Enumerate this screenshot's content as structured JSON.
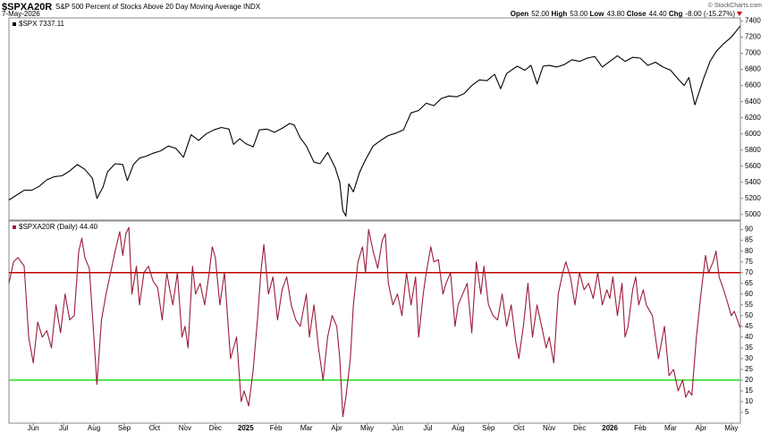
{
  "header": {
    "symbol": "$SPXA20R",
    "title": "S&P 500 Percent of Stocks Above 20 Day Moving Average INDX",
    "date": "7-May-2026",
    "brand": "© StockCharts.com",
    "quote": [
      {
        "label": "Open",
        "value": "52.00"
      },
      {
        "label": "High",
        "value": "53.00"
      },
      {
        "label": "Low",
        "value": "43.80"
      },
      {
        "label": "Close",
        "value": "44.40"
      },
      {
        "label": "Chg",
        "value": "-8.00 (-15.27%)"
      }
    ]
  },
  "chart_data": [
    {
      "type": "line",
      "xlim": [
        4.2,
        28.3
      ],
      "ylim": [
        4930,
        7440
      ],
      "yticks": [
        {
          "value": 5000,
          "label": "5000"
        },
        5200,
        5400,
        5600,
        5800,
        6000,
        6200,
        6400,
        6600,
        6800,
        7000,
        7200,
        7400
      ],
      "x": [
        4.2,
        4.45,
        4.7,
        4.95,
        5.2,
        5.45,
        5.7,
        5.95,
        6.2,
        6.45,
        6.7,
        6.95,
        7.1,
        7.3,
        7.45,
        7.7,
        7.95,
        8.1,
        8.3,
        8.5,
        8.7,
        8.95,
        9.2,
        9.45,
        9.7,
        9.95,
        10.2,
        10.45,
        10.7,
        10.95,
        11.2,
        11.45,
        11.6,
        11.8,
        12.0,
        12.25,
        12.45,
        12.7,
        12.95,
        13.2,
        13.45,
        13.6,
        13.8,
        14.0,
        14.25,
        14.45,
        14.7,
        14.95,
        15.1,
        15.2,
        15.3,
        15.4,
        15.55,
        15.75,
        15.95,
        16.2,
        16.45,
        16.7,
        16.95,
        17.2,
        17.45,
        17.7,
        17.95,
        18.2,
        18.45,
        18.7,
        18.95,
        19.2,
        19.45,
        19.7,
        19.95,
        20.2,
        20.4,
        20.6,
        20.95,
        21.2,
        21.4,
        21.6,
        21.8,
        22.0,
        22.25,
        22.5,
        22.75,
        23.0,
        23.25,
        23.5,
        23.75,
        24.0,
        24.25,
        24.5,
        24.75,
        25.0,
        25.25,
        25.5,
        25.75,
        26.0,
        26.25,
        26.45,
        26.6,
        26.8,
        26.95,
        27.1,
        27.3,
        27.5,
        27.75,
        28.0,
        28.29
      ],
      "series": [
        {
          "name": "$SPX 7337.11",
          "color": "#000000",
          "values": [
            5180,
            5240,
            5300,
            5300,
            5350,
            5430,
            5470,
            5480,
            5540,
            5620,
            5560,
            5450,
            5200,
            5340,
            5530,
            5630,
            5620,
            5420,
            5620,
            5700,
            5720,
            5760,
            5790,
            5850,
            5820,
            5710,
            5990,
            5920,
            6000,
            6050,
            6080,
            6060,
            5870,
            5940,
            5880,
            5840,
            6050,
            6060,
            6020,
            6070,
            6130,
            6110,
            5950,
            5850,
            5650,
            5630,
            5770,
            5580,
            5400,
            5050,
            4980,
            5380,
            5280,
            5520,
            5680,
            5850,
            5920,
            5980,
            6010,
            6050,
            6260,
            6290,
            6380,
            6350,
            6440,
            6470,
            6460,
            6500,
            6600,
            6670,
            6660,
            6740,
            6560,
            6750,
            6840,
            6790,
            6850,
            6620,
            6840,
            6850,
            6830,
            6860,
            6920,
            6900,
            6940,
            6960,
            6830,
            6900,
            6970,
            6900,
            6950,
            6940,
            6850,
            6890,
            6830,
            6790,
            6680,
            6600,
            6700,
            6360,
            6530,
            6700,
            6900,
            7020,
            7120,
            7200,
            7337.11
          ]
        }
      ]
    },
    {
      "type": "line",
      "xlim": [
        4.2,
        28.3
      ],
      "ylim": [
        0,
        94
      ],
      "yticks": [
        5,
        10,
        15,
        20,
        25,
        30,
        35,
        40,
        45,
        50,
        55,
        60,
        65,
        70,
        75,
        80,
        85,
        90
      ],
      "xticks": [
        {
          "value": 5,
          "label": "Jun"
        },
        {
          "value": 6,
          "label": "Jul"
        },
        {
          "value": 7,
          "label": "Aug"
        },
        {
          "value": 8,
          "label": "Sep"
        },
        {
          "value": 9,
          "label": "Oct"
        },
        {
          "value": 10,
          "label": "Nov"
        },
        {
          "value": 11,
          "label": "Dec"
        },
        {
          "value": 12,
          "label": "2025"
        },
        {
          "value": 13,
          "label": "Feb"
        },
        {
          "value": 14,
          "label": "Mar"
        },
        {
          "value": 15,
          "label": "Apr"
        },
        {
          "value": 16,
          "label": "May"
        },
        {
          "value": 17,
          "label": "Jun"
        },
        {
          "value": 18,
          "label": "Jul"
        },
        {
          "value": 19,
          "label": "Aug"
        },
        {
          "value": 20,
          "label": "Sep"
        },
        {
          "value": 21,
          "label": "Oct"
        },
        {
          "value": 22,
          "label": "Nov"
        },
        {
          "value": 23,
          "label": "Dec"
        },
        {
          "value": 24,
          "label": "2026"
        },
        {
          "value": 25,
          "label": "Feb"
        },
        {
          "value": 26,
          "label": "Mar"
        },
        {
          "value": 27,
          "label": "Apr"
        },
        {
          "value": 28,
          "label": "May"
        }
      ],
      "hlines": [
        {
          "value": 70,
          "color": "#c00000"
        },
        {
          "value": 20,
          "color": "#22dd22"
        }
      ],
      "x": [
        4.2,
        4.35,
        4.5,
        4.7,
        4.85,
        5.0,
        5.15,
        5.3,
        5.45,
        5.6,
        5.75,
        5.9,
        6.05,
        6.2,
        6.35,
        6.5,
        6.6,
        6.7,
        6.85,
        7.0,
        7.1,
        7.25,
        7.4,
        7.55,
        7.7,
        7.85,
        7.95,
        8.05,
        8.15,
        8.25,
        8.4,
        8.5,
        8.65,
        8.8,
        8.95,
        9.1,
        9.25,
        9.4,
        9.5,
        9.6,
        9.75,
        9.9,
        10.0,
        10.1,
        10.25,
        10.35,
        10.5,
        10.65,
        10.8,
        10.9,
        11.0,
        11.15,
        11.3,
        11.5,
        11.7,
        11.85,
        11.95,
        12.1,
        12.25,
        12.4,
        12.5,
        12.6,
        12.75,
        12.9,
        13.05,
        13.2,
        13.35,
        13.5,
        13.65,
        13.8,
        14.0,
        14.1,
        14.25,
        14.4,
        14.55,
        14.7,
        14.85,
        15.0,
        15.1,
        15.2,
        15.3,
        15.45,
        15.55,
        15.7,
        15.85,
        15.95,
        16.05,
        16.2,
        16.35,
        16.5,
        16.6,
        16.7,
        16.85,
        17.0,
        17.15,
        17.3,
        17.45,
        17.6,
        17.7,
        17.85,
        17.95,
        18.1,
        18.2,
        18.35,
        18.5,
        18.6,
        18.75,
        18.9,
        19.0,
        19.15,
        19.3,
        19.45,
        19.6,
        19.75,
        19.85,
        20.0,
        20.15,
        20.3,
        20.45,
        20.6,
        20.75,
        20.9,
        21.0,
        21.15,
        21.3,
        21.45,
        21.6,
        21.75,
        21.9,
        22.0,
        22.15,
        22.3,
        22.45,
        22.55,
        22.7,
        22.85,
        23.0,
        23.15,
        23.3,
        23.45,
        23.6,
        23.75,
        23.9,
        24.0,
        24.1,
        24.25,
        24.4,
        24.5,
        24.6,
        24.75,
        24.85,
        24.95,
        25.1,
        25.2,
        25.4,
        25.6,
        25.8,
        25.95,
        26.1,
        26.25,
        26.4,
        26.5,
        26.6,
        26.7,
        26.85,
        27.0,
        27.15,
        27.25,
        27.4,
        27.5,
        27.6,
        27.75,
        27.9,
        28.0,
        28.1,
        28.29
      ],
      "series": [
        {
          "name": "$SPXA20R (Daily) 44.40",
          "color": "#9b1b3a",
          "values": [
            65,
            75,
            77,
            73,
            40,
            28,
            47,
            40,
            43,
            35,
            55,
            42,
            60,
            48,
            50,
            80,
            86,
            77,
            72,
            40,
            18,
            48,
            60,
            70,
            80,
            89,
            78,
            88,
            91,
            60,
            73,
            55,
            70,
            73,
            66,
            63,
            48,
            70,
            62,
            55,
            70,
            40,
            45,
            35,
            73,
            60,
            65,
            55,
            70,
            82,
            77,
            55,
            70,
            30,
            40,
            10,
            15,
            8,
            25,
            50,
            70,
            83,
            60,
            68,
            48,
            62,
            68,
            55,
            48,
            45,
            60,
            40,
            55,
            35,
            20,
            40,
            50,
            45,
            30,
            3,
            12,
            30,
            55,
            75,
            82,
            70,
            90,
            80,
            72,
            85,
            88,
            65,
            55,
            60,
            50,
            70,
            55,
            68,
            40,
            60,
            70,
            82,
            75,
            76,
            60,
            65,
            70,
            45,
            55,
            60,
            65,
            42,
            75,
            60,
            73,
            55,
            50,
            48,
            60,
            45,
            55,
            38,
            30,
            45,
            65,
            40,
            55,
            45,
            35,
            40,
            28,
            60,
            70,
            75,
            68,
            55,
            70,
            62,
            65,
            58,
            70,
            55,
            62,
            58,
            68,
            50,
            65,
            40,
            45,
            62,
            68,
            55,
            62,
            55,
            50,
            30,
            45,
            22,
            25,
            15,
            20,
            12,
            15,
            13,
            40,
            60,
            78,
            70,
            75,
            80,
            68,
            62,
            55,
            50,
            52,
            44.4
          ]
        }
      ]
    }
  ]
}
